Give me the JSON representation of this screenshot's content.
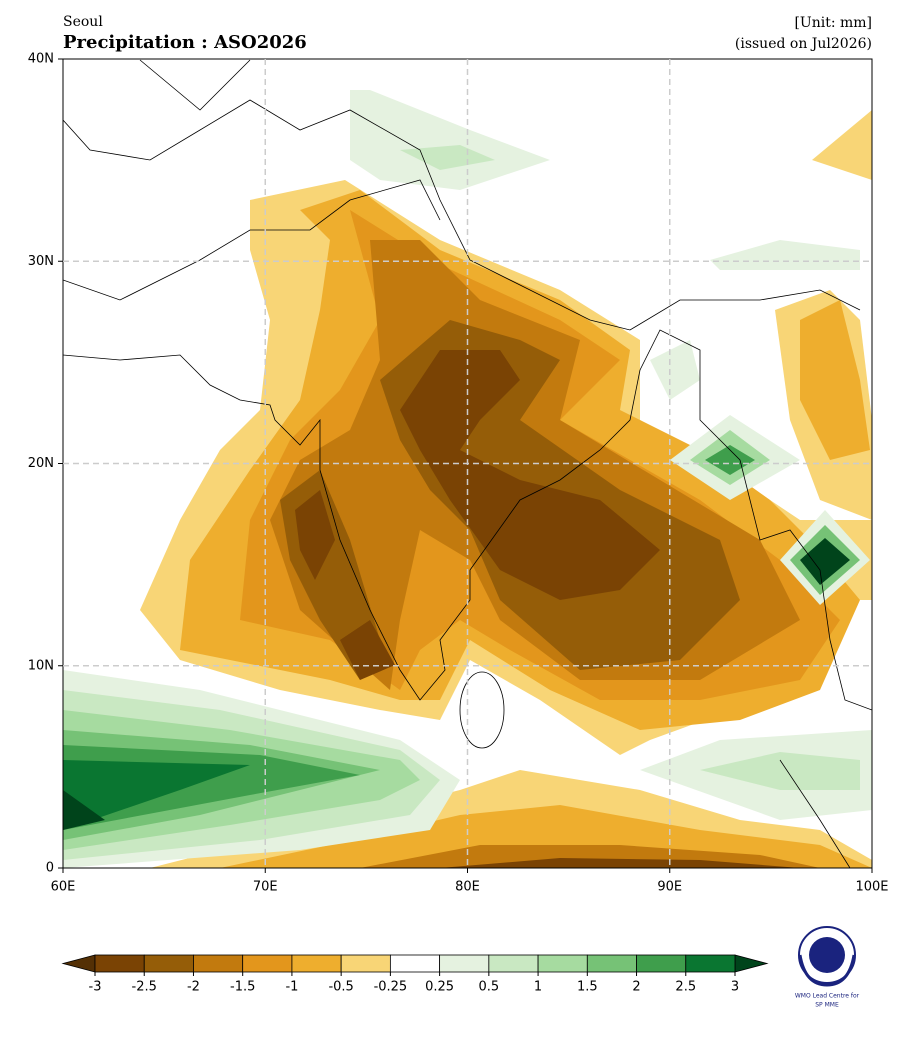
{
  "header": {
    "location": "Seoul",
    "title": "Precipitation : ASO2026",
    "unit": "[Unit: mm]",
    "issued": "(issued on Jul2026)"
  },
  "map": {
    "xlim": [
      60,
      100
    ],
    "ylim": [
      0,
      40
    ],
    "xticks": [
      {
        "value": 60,
        "label": "60E"
      },
      {
        "value": 70,
        "label": "70E"
      },
      {
        "value": 80,
        "label": "80E"
      },
      {
        "value": 90,
        "label": "90E"
      },
      {
        "value": 100,
        "label": "100E"
      }
    ],
    "yticks": [
      0,
      {
        "value": 10,
        "label": "10N"
      },
      {
        "value": 20,
        "label": "20N"
      },
      {
        "value": 30,
        "label": "30N"
      },
      {
        "value": 40,
        "label": "40N"
      }
    ],
    "grid": true
  },
  "colorbar": {
    "levels": [
      -3,
      -2.5,
      -2,
      -1.5,
      -1,
      -0.5,
      -0.25,
      0.25,
      0.5,
      1,
      1.5,
      2,
      2.5,
      3
    ],
    "colors": [
      "#7a4304",
      "#955d08",
      "#c27a0e",
      "#e3961c",
      "#eeae2e",
      "#f8d576",
      "#ffffff",
      "#e5f2e0",
      "#c9e8c2",
      "#a6dba0",
      "#76c276",
      "#3f9e4c",
      "#0a7631"
    ],
    "under_color": "#543005",
    "over_color": "#00441b"
  },
  "logo": {
    "line1": "WMO Lead Centre for",
    "line2": "SP MME"
  }
}
